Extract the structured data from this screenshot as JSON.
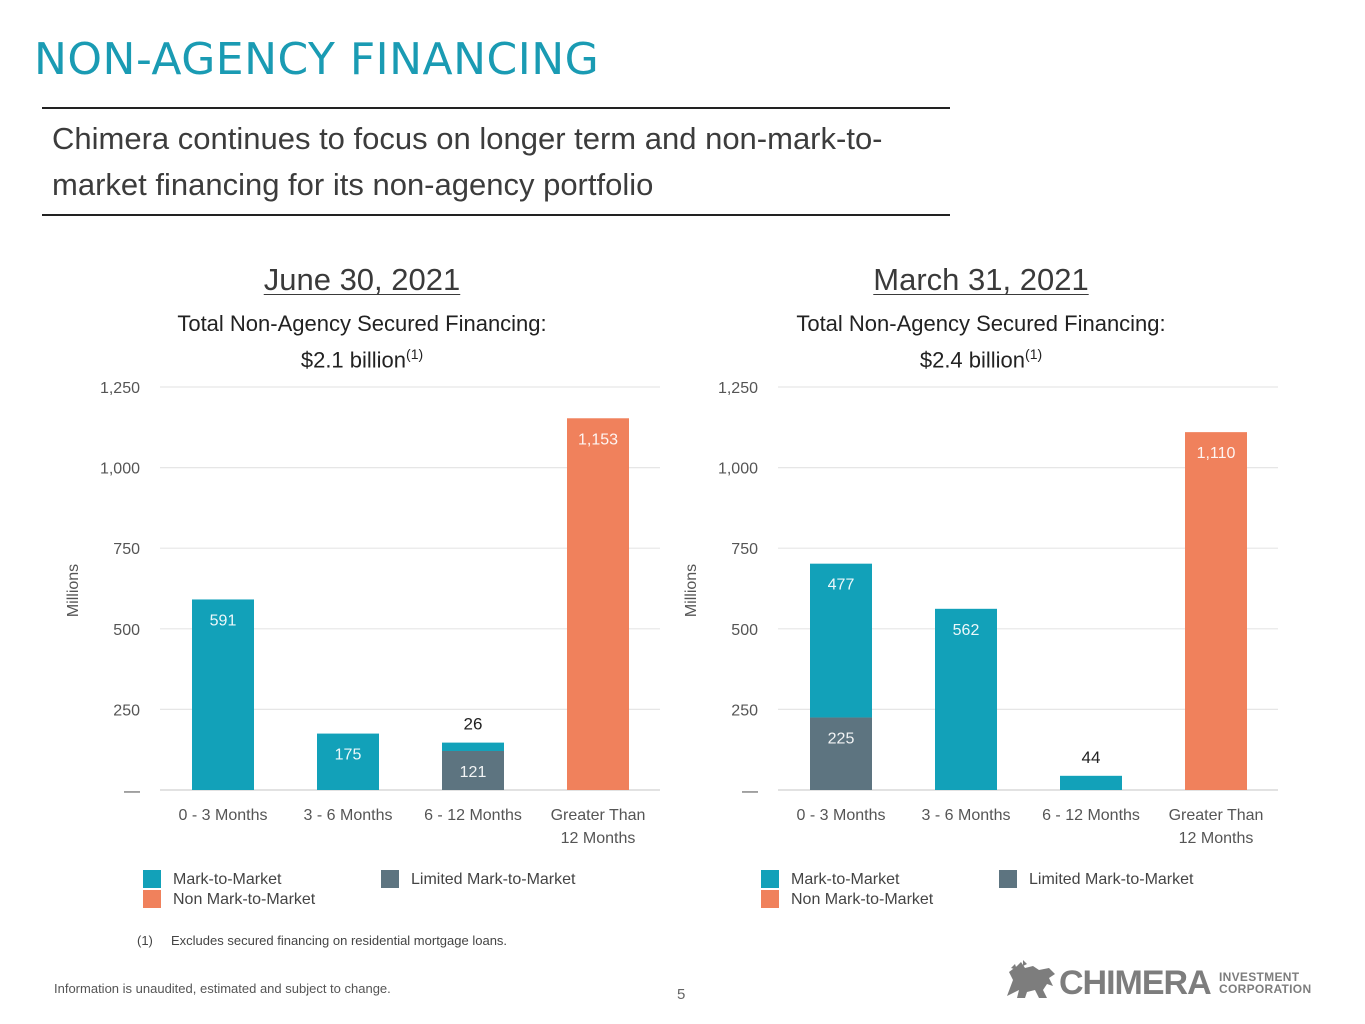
{
  "page": {
    "title": "NON-AGENCY FINANCING",
    "subtitle": "Chimera continues to focus on longer term and non-mark-to-market financing for its non-agency portfolio",
    "footnote_num": "(1)",
    "footnote_text": "Excludes secured financing on residential mortgage loans.",
    "disclaimer": "Information is unaudited, estimated and subject to change.",
    "page_number": "5",
    "logo_word": "CHIMERA",
    "logo_sub1": "INVESTMENT",
    "logo_sub2": "CORPORATION"
  },
  "colors": {
    "mtm": "#12a1b9",
    "limited": "#5d7480",
    "non_mtm": "#f0815c",
    "grid": "#e6e6e6",
    "axis_text": "#555555"
  },
  "chart_data": [
    {
      "type": "bar",
      "stacked": true,
      "date": "June 30, 2021",
      "total_label": "Total Non-Agency Secured Financing:",
      "total_value": "$2.1 billion",
      "total_sup": "(1)",
      "ylabel": "Millions",
      "ylim": [
        0,
        1250
      ],
      "yticks": [
        0,
        250,
        500,
        750,
        1000,
        1250
      ],
      "ytick_labels": [
        "—",
        "250",
        "500",
        "750",
        "1,000",
        "1,250"
      ],
      "categories": [
        [
          "0 - 3 Months"
        ],
        [
          "3 - 6 Months"
        ],
        [
          "6 - 12 Months"
        ],
        [
          "Greater Than",
          "12 Months"
        ]
      ],
      "series": [
        {
          "name": "Limited Mark-to-Market",
          "key": "limited",
          "values": [
            0,
            0,
            121,
            0
          ],
          "labels": [
            null,
            null,
            "121",
            null
          ]
        },
        {
          "name": "Mark-to-Market",
          "key": "mtm",
          "values": [
            591,
            175,
            26,
            0
          ],
          "labels": [
            "591",
            "175",
            "26",
            null
          ]
        },
        {
          "name": "Non Mark-to-Market",
          "key": "non_mtm",
          "values": [
            0,
            0,
            0,
            1153
          ],
          "labels": [
            null,
            null,
            null,
            "1,153"
          ]
        }
      ],
      "legend": [
        "Mark-to-Market",
        "Limited Mark-to-Market",
        "Non Mark-to-Market"
      ]
    },
    {
      "type": "bar",
      "stacked": true,
      "date": "March 31, 2021",
      "total_label": "Total Non-Agency Secured Financing:",
      "total_value": "$2.4 billion",
      "total_sup": "(1)",
      "ylabel": "Millions",
      "ylim": [
        0,
        1250
      ],
      "yticks": [
        0,
        250,
        500,
        750,
        1000,
        1250
      ],
      "ytick_labels": [
        "—",
        "250",
        "500",
        "750",
        "1,000",
        "1,250"
      ],
      "categories": [
        [
          "0 - 3 Months"
        ],
        [
          "3 - 6 Months"
        ],
        [
          "6 - 12 Months"
        ],
        [
          "Greater Than",
          "12 Months"
        ]
      ],
      "series": [
        {
          "name": "Limited Mark-to-Market",
          "key": "limited",
          "values": [
            225,
            0,
            0,
            0
          ],
          "labels": [
            "225",
            null,
            null,
            null
          ]
        },
        {
          "name": "Mark-to-Market",
          "key": "mtm",
          "values": [
            477,
            562,
            44,
            0
          ],
          "labels": [
            "477",
            "562",
            "44",
            null
          ]
        },
        {
          "name": "Non Mark-to-Market",
          "key": "non_mtm",
          "values": [
            0,
            0,
            0,
            1110
          ],
          "labels": [
            null,
            null,
            null,
            "1,110"
          ]
        }
      ],
      "legend": [
        "Mark-to-Market",
        "Limited Mark-to-Market",
        "Non Mark-to-Market"
      ]
    }
  ]
}
